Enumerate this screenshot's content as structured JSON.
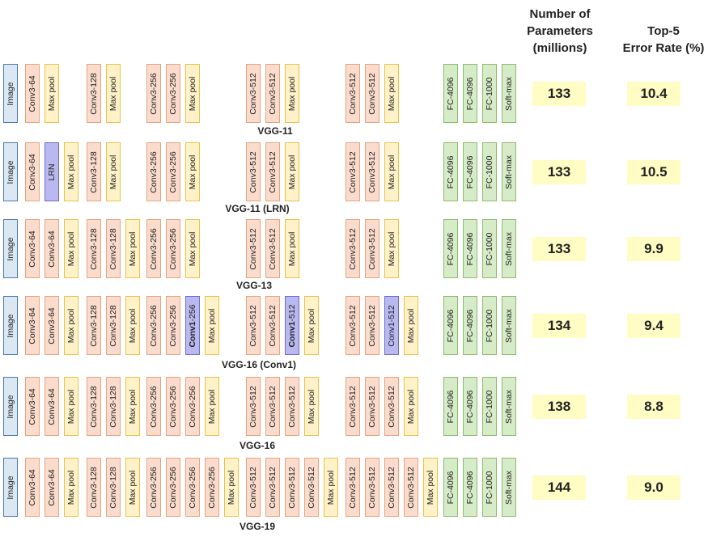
{
  "headers": {
    "params": [
      "Number of",
      "Parameters",
      "(millions)"
    ],
    "error": [
      "Top-5",
      "Error Rate (%)"
    ]
  },
  "colors": {
    "image": "#dbe7f3",
    "conv": "#fbdccc",
    "maxpool": "#fff2c8",
    "fc": "#d6ebc7",
    "highlight": "#b9b8f0",
    "value_box": "#fffcc4"
  },
  "networks": [
    {
      "name": "VGG-11",
      "params": "133",
      "error": "10.4",
      "groups": [
        [
          {
            "t": "image",
            "label": "Image"
          }
        ],
        [
          {
            "t": "conv",
            "label": "Conv3-64"
          },
          {
            "t": "pool",
            "label": "Max pool"
          }
        ],
        [
          {
            "t": "conv",
            "label": "Conv3-128"
          },
          {
            "t": "pool",
            "label": "Max pool"
          }
        ],
        [
          {
            "t": "conv",
            "label": "Conv3-256"
          },
          {
            "t": "conv",
            "label": "Conv3-256"
          },
          {
            "t": "pool",
            "label": "Max pool"
          }
        ],
        [
          {
            "t": "conv",
            "label": "Conv3-512"
          },
          {
            "t": "conv",
            "label": "Conv3-512"
          },
          {
            "t": "pool",
            "label": "Max pool"
          }
        ],
        [
          {
            "t": "conv",
            "label": "Conv3-512"
          },
          {
            "t": "conv",
            "label": "Conv3-512"
          },
          {
            "t": "pool",
            "label": "Max pool"
          }
        ],
        [
          {
            "t": "fc",
            "label": "FC-4096"
          },
          {
            "t": "fc",
            "label": "FC-4096"
          },
          {
            "t": "fc",
            "label": "FC-1000"
          },
          {
            "t": "fc",
            "label": "Soft-max"
          }
        ]
      ]
    },
    {
      "name": "VGG-11 (LRN)",
      "params": "133",
      "error": "10.5",
      "groups": [
        [
          {
            "t": "image",
            "label": "Image"
          }
        ],
        [
          {
            "t": "conv",
            "label": "Conv3-64"
          },
          {
            "t": "lrn",
            "label": "LRN"
          },
          {
            "t": "pool",
            "label": "Max pool"
          }
        ],
        [
          {
            "t": "conv",
            "label": "Conv3-128"
          },
          {
            "t": "pool",
            "label": "Max pool"
          }
        ],
        [
          {
            "t": "conv",
            "label": "Conv3-256"
          },
          {
            "t": "conv",
            "label": "Conv3-256"
          },
          {
            "t": "pool",
            "label": "Max pool"
          }
        ],
        [
          {
            "t": "conv",
            "label": "Conv3-512"
          },
          {
            "t": "conv",
            "label": "Conv3-512"
          },
          {
            "t": "pool",
            "label": "Max pool"
          }
        ],
        [
          {
            "t": "conv",
            "label": "Conv3-512"
          },
          {
            "t": "conv",
            "label": "Conv3-512"
          },
          {
            "t": "pool",
            "label": "Max pool"
          }
        ],
        [
          {
            "t": "fc",
            "label": "FC-4096"
          },
          {
            "t": "fc",
            "label": "FC-4096"
          },
          {
            "t": "fc",
            "label": "FC-1000"
          },
          {
            "t": "fc",
            "label": "Soft-max"
          }
        ]
      ]
    },
    {
      "name": "VGG-13",
      "params": "133",
      "error": "9.9",
      "groups": [
        [
          {
            "t": "image",
            "label": "Image"
          }
        ],
        [
          {
            "t": "conv",
            "label": "Conv3-64"
          },
          {
            "t": "conv",
            "label": "Conv3-64"
          },
          {
            "t": "pool",
            "label": "Max pool"
          }
        ],
        [
          {
            "t": "conv",
            "label": "Conv3-128"
          },
          {
            "t": "conv",
            "label": "Conv3-128"
          },
          {
            "t": "pool",
            "label": "Max pool"
          }
        ],
        [
          {
            "t": "conv",
            "label": "Conv3-256"
          },
          {
            "t": "conv",
            "label": "Conv3-256"
          },
          {
            "t": "pool",
            "label": "Max pool"
          }
        ],
        [
          {
            "t": "conv",
            "label": "Conv3-512"
          },
          {
            "t": "conv",
            "label": "Conv3-512"
          },
          {
            "t": "pool",
            "label": "Max pool"
          }
        ],
        [
          {
            "t": "conv",
            "label": "Conv3-512"
          },
          {
            "t": "conv",
            "label": "Conv3-512"
          },
          {
            "t": "pool",
            "label": "Max pool"
          }
        ],
        [
          {
            "t": "fc",
            "label": "FC-4096"
          },
          {
            "t": "fc",
            "label": "FC-4096"
          },
          {
            "t": "fc",
            "label": "FC-1000"
          },
          {
            "t": "fc",
            "label": "Soft-max"
          }
        ]
      ]
    },
    {
      "name": "VGG-16 (Conv1)",
      "params": "134",
      "error": "9.4",
      "groups": [
        [
          {
            "t": "image",
            "label": "Image"
          }
        ],
        [
          {
            "t": "conv",
            "label": "Conv3-64"
          },
          {
            "t": "conv",
            "label": "Conv3-64"
          },
          {
            "t": "pool",
            "label": "Max pool"
          }
        ],
        [
          {
            "t": "conv",
            "label": "Conv3-128"
          },
          {
            "t": "conv",
            "label": "Conv3-128"
          },
          {
            "t": "pool",
            "label": "Max pool"
          }
        ],
        [
          {
            "t": "conv",
            "label": "Conv3-256"
          },
          {
            "t": "conv",
            "label": "Conv3-256"
          },
          {
            "t": "conv1",
            "label": "Conv1-256",
            "bold": "Conv1",
            "rest": "-256"
          },
          {
            "t": "pool",
            "label": "Max pool"
          }
        ],
        [
          {
            "t": "conv",
            "label": "Conv3-512"
          },
          {
            "t": "conv",
            "label": "Conv3-512"
          },
          {
            "t": "conv1",
            "label": "Conv1-512",
            "bold": "Conv1",
            "rest": "-512"
          },
          {
            "t": "pool",
            "label": "Max pool"
          }
        ],
        [
          {
            "t": "conv",
            "label": "Conv3-512"
          },
          {
            "t": "conv",
            "label": "Conv3-512"
          },
          {
            "t": "conv1",
            "label": "Conv1-512"
          },
          {
            "t": "pool",
            "label": "Max pool"
          }
        ],
        [
          {
            "t": "fc",
            "label": "FC-4096"
          },
          {
            "t": "fc",
            "label": "FC-4096"
          },
          {
            "t": "fc",
            "label": "FC-1000"
          },
          {
            "t": "fc",
            "label": "Soft-max"
          }
        ]
      ]
    },
    {
      "name": "VGG-16",
      "params": "138",
      "error": "8.8",
      "groups": [
        [
          {
            "t": "image",
            "label": "Image"
          }
        ],
        [
          {
            "t": "conv",
            "label": "Conv3-64"
          },
          {
            "t": "conv",
            "label": "Conv3-64"
          },
          {
            "t": "pool",
            "label": "Max pool"
          }
        ],
        [
          {
            "t": "conv",
            "label": "Conv3-128"
          },
          {
            "t": "conv",
            "label": "Conv3-128"
          },
          {
            "t": "pool",
            "label": "Max pool"
          }
        ],
        [
          {
            "t": "conv",
            "label": "Conv3-256"
          },
          {
            "t": "conv",
            "label": "Conv3-256"
          },
          {
            "t": "conv",
            "label": "Conv3-256"
          },
          {
            "t": "pool",
            "label": "Max pool"
          }
        ],
        [
          {
            "t": "conv",
            "label": "Conv3-512"
          },
          {
            "t": "conv",
            "label": "Conv3-512"
          },
          {
            "t": "conv",
            "label": "Conv3-512"
          },
          {
            "t": "pool",
            "label": "Max pool"
          }
        ],
        [
          {
            "t": "conv",
            "label": "Conv3-512"
          },
          {
            "t": "conv",
            "label": "Conv3-512"
          },
          {
            "t": "conv",
            "label": "Conv3-512"
          },
          {
            "t": "pool",
            "label": "Max pool"
          }
        ],
        [
          {
            "t": "fc",
            "label": "FC-4096"
          },
          {
            "t": "fc",
            "label": "FC-4096"
          },
          {
            "t": "fc",
            "label": "FC-1000"
          },
          {
            "t": "fc",
            "label": "Soft-max"
          }
        ]
      ]
    },
    {
      "name": "VGG-19",
      "params": "144",
      "error": "9.0",
      "groups": [
        [
          {
            "t": "image",
            "label": "Image"
          }
        ],
        [
          {
            "t": "conv",
            "label": "Conv3-64"
          },
          {
            "t": "conv",
            "label": "Conv3-64"
          },
          {
            "t": "pool",
            "label": "Max pool"
          }
        ],
        [
          {
            "t": "conv",
            "label": "Conv3-128"
          },
          {
            "t": "conv",
            "label": "Conv3-128"
          },
          {
            "t": "pool",
            "label": "Max pool"
          }
        ],
        [
          {
            "t": "conv",
            "label": "Conv3-256"
          },
          {
            "t": "conv",
            "label": "Conv3-256"
          },
          {
            "t": "conv",
            "label": "Conv3-256"
          },
          {
            "t": "conv",
            "label": "Conv3-256"
          },
          {
            "t": "pool",
            "label": "Max pool"
          }
        ],
        [
          {
            "t": "conv",
            "label": "Conv3-512"
          },
          {
            "t": "conv",
            "label": "Conv3-512"
          },
          {
            "t": "conv",
            "label": "Conv3-512"
          },
          {
            "t": "conv",
            "label": "Conv3-512"
          },
          {
            "t": "pool",
            "label": "Max pool"
          }
        ],
        [
          {
            "t": "conv",
            "label": "Conv3-512"
          },
          {
            "t": "conv",
            "label": "Conv3-512"
          },
          {
            "t": "conv",
            "label": "Conv3-512"
          },
          {
            "t": "conv",
            "label": "Conv3-512"
          },
          {
            "t": "pool",
            "label": "Max pool"
          }
        ],
        [
          {
            "t": "fc",
            "label": "FC-4096"
          },
          {
            "t": "fc",
            "label": "FC-4096"
          },
          {
            "t": "fc",
            "label": "FC-1000"
          },
          {
            "t": "fc",
            "label": "Soft-max"
          }
        ]
      ]
    }
  ]
}
